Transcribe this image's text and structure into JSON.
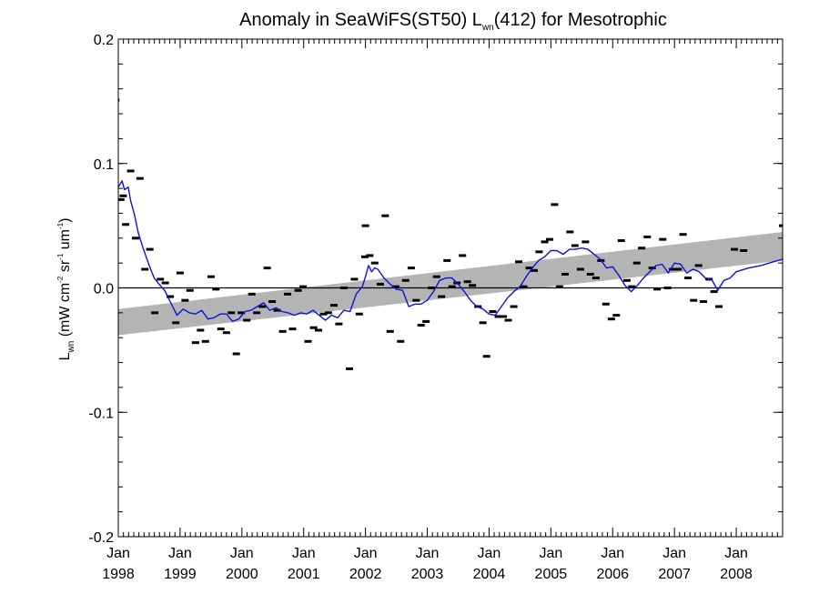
{
  "chart_data": {
    "type": "scatter",
    "title": {
      "main": "Anomaly in SeaWiFS(ST50) L",
      "sub": "wn",
      "rest": "(412) for Mesotrophic"
    },
    "ylabel": {
      "symbol": "L",
      "symbol_sub": "wn",
      "unit_prefix": " (mW cm",
      "exp1": "-2",
      "unit_mid1": " sr",
      "exp2": "-1",
      "unit_mid2": " um",
      "exp3": "-1",
      "unit_suffix": ")"
    },
    "x_range": [
      1998.0,
      2008.75
    ],
    "ylim": [
      -0.2,
      0.2
    ],
    "x_ticks": [
      {
        "x": 1998,
        "month": "Jan",
        "year": "1998"
      },
      {
        "x": 1999,
        "month": "Jan",
        "year": "1999"
      },
      {
        "x": 2000,
        "month": "Jan",
        "year": "2000"
      },
      {
        "x": 2001,
        "month": "Jan",
        "year": "2001"
      },
      {
        "x": 2002,
        "month": "Jan",
        "year": "2002"
      },
      {
        "x": 2003,
        "month": "Jan",
        "year": "2003"
      },
      {
        "x": 2004,
        "month": "Jan",
        "year": "2004"
      },
      {
        "x": 2005,
        "month": "Jan",
        "year": "2005"
      },
      {
        "x": 2006,
        "month": "Jan",
        "year": "2006"
      },
      {
        "x": 2007,
        "month": "Jan",
        "year": "2007"
      },
      {
        "x": 2008,
        "month": "Jan",
        "year": "2008"
      }
    ],
    "y_ticks": [
      {
        "y": 0.2,
        "label": "0.2"
      },
      {
        "y": 0.1,
        "label": "0.1"
      },
      {
        "y": 0.0,
        "label": "0.0"
      },
      {
        "y": -0.1,
        "label": "-0.1"
      },
      {
        "y": -0.2,
        "label": "-0.2"
      }
    ],
    "zero_line": 0.0,
    "trend_band": {
      "x": [
        1998.0,
        2008.75
      ],
      "upper": [
        -0.017,
        0.045
      ],
      "lower": [
        -0.038,
        0.022
      ]
    },
    "colors": {
      "smooth": "#1010dd",
      "band": "#b4b4b4",
      "points": "#000000",
      "axis": "#000000"
    },
    "monthly_anomalies": [
      [
        1997.96,
        0.151
      ],
      [
        1998.04,
        0.071
      ],
      [
        1998.08,
        0.074
      ],
      [
        1998.12,
        0.051
      ],
      [
        1998.2,
        0.094
      ],
      [
        1998.28,
        0.04
      ],
      [
        1998.35,
        0.088
      ],
      [
        1998.43,
        0.015
      ],
      [
        1998.51,
        0.031
      ],
      [
        1998.59,
        -0.02
      ],
      [
        1998.68,
        0.007
      ],
      [
        1998.76,
        0.004
      ],
      [
        1998.84,
        -0.007
      ],
      [
        1998.93,
        -0.028
      ],
      [
        1999.0,
        0.012
      ],
      [
        1999.08,
        -0.01
      ],
      [
        1999.16,
        -0.002
      ],
      [
        1999.25,
        -0.044
      ],
      [
        1999.33,
        -0.034
      ],
      [
        1999.41,
        -0.043
      ],
      [
        1999.5,
        0.009
      ],
      [
        1999.58,
        -0.001
      ],
      [
        1999.66,
        -0.033
      ],
      [
        1999.75,
        -0.036
      ],
      [
        1999.83,
        -0.02
      ],
      [
        1999.91,
        -0.053
      ],
      [
        1999.99,
        -0.02
      ],
      [
        2000.08,
        -0.026
      ],
      [
        2000.16,
        -0.005
      ],
      [
        2000.24,
        -0.02
      ],
      [
        2000.33,
        -0.015
      ],
      [
        2000.41,
        0.016
      ],
      [
        2000.49,
        -0.011
      ],
      [
        2000.57,
        -0.018
      ],
      [
        2000.66,
        -0.035
      ],
      [
        2000.74,
        -0.005
      ],
      [
        2000.82,
        -0.033
      ],
      [
        2000.91,
        -0.002
      ],
      [
        2000.99,
        0.001
      ],
      [
        2001.07,
        -0.043
      ],
      [
        2001.16,
        -0.032
      ],
      [
        2001.24,
        -0.034
      ],
      [
        2001.32,
        -0.021
      ],
      [
        2001.4,
        -0.02
      ],
      [
        2001.49,
        -0.014
      ],
      [
        2001.57,
        -0.029
      ],
      [
        2001.65,
        0.0
      ],
      [
        2001.74,
        -0.065
      ],
      [
        2001.82,
        0.007
      ],
      [
        2001.9,
        -0.021
      ],
      [
        2001.99,
        0.025
      ],
      [
        2002.0,
        0.05
      ],
      [
        2002.07,
        0.026
      ],
      [
        2002.15,
        0.02
      ],
      [
        2002.24,
        0.003
      ],
      [
        2002.32,
        0.058
      ],
      [
        2002.4,
        -0.035
      ],
      [
        2002.49,
        0.001
      ],
      [
        2002.57,
        -0.043
      ],
      [
        2002.65,
        0.006
      ],
      [
        2002.74,
        0.016
      ],
      [
        2002.82,
        -0.01
      ],
      [
        2002.9,
        -0.03
      ],
      [
        2002.98,
        -0.027
      ],
      [
        2003.07,
        0.0
      ],
      [
        2003.15,
        0.009
      ],
      [
        2003.23,
        -0.007
      ],
      [
        2003.32,
        0.022
      ],
      [
        2003.4,
        0.001
      ],
      [
        2003.48,
        0.004
      ],
      [
        2003.57,
        0.026
      ],
      [
        2003.65,
        0.005
      ],
      [
        2003.73,
        0.002
      ],
      [
        2003.82,
        -0.015
      ],
      [
        2003.9,
        -0.028
      ],
      [
        2003.96,
        -0.055
      ],
      [
        2004.06,
        -0.019
      ],
      [
        2004.15,
        -0.023
      ],
      [
        2004.23,
        -0.023
      ],
      [
        2004.31,
        -0.026
      ],
      [
        2004.4,
        -0.015
      ],
      [
        2004.48,
        0.021
      ],
      [
        2004.56,
        0.001
      ],
      [
        2004.65,
        0.016
      ],
      [
        2004.73,
        0.014
      ],
      [
        2004.81,
        0.029
      ],
      [
        2004.9,
        0.037
      ],
      [
        2004.98,
        0.039
      ],
      [
        2005.06,
        0.067
      ],
      [
        2005.14,
        0.001
      ],
      [
        2005.23,
        0.011
      ],
      [
        2005.31,
        0.045
      ],
      [
        2005.39,
        0.034
      ],
      [
        2005.48,
        0.015
      ],
      [
        2005.56,
        0.037
      ],
      [
        2005.64,
        0.011
      ],
      [
        2005.73,
        0.008
      ],
      [
        2005.81,
        0.022
      ],
      [
        2005.89,
        -0.013
      ],
      [
        2005.98,
        -0.025
      ],
      [
        2006.06,
        -0.022
      ],
      [
        2006.14,
        0.038
      ],
      [
        2006.23,
        0.006
      ],
      [
        2006.31,
        0.001
      ],
      [
        2006.39,
        0.02
      ],
      [
        2006.47,
        0.032
      ],
      [
        2006.56,
        0.041
      ],
      [
        2006.64,
        0.016
      ],
      [
        2006.72,
        -0.001
      ],
      [
        2006.81,
        0.039
      ],
      [
        2006.89,
        0.0
      ],
      [
        2006.97,
        0.015
      ],
      [
        2007.06,
        0.015
      ],
      [
        2007.14,
        0.043
      ],
      [
        2007.22,
        0.008
      ],
      [
        2007.31,
        -0.01
      ],
      [
        2007.39,
        0.018
      ],
      [
        2007.47,
        -0.011
      ],
      [
        2007.56,
        0.007
      ],
      [
        2007.64,
        -0.003
      ],
      [
        2007.72,
        -0.015
      ],
      [
        2007.97,
        0.031
      ],
      [
        2008.12,
        0.03
      ],
      [
        2008.75,
        0.05
      ]
    ],
    "smoothed_series": [
      [
        1998.0,
        0.081
      ],
      [
        1998.06,
        0.086
      ],
      [
        1998.1,
        0.079
      ],
      [
        1998.16,
        0.081
      ],
      [
        1998.2,
        0.07
      ],
      [
        1998.26,
        0.059
      ],
      [
        1998.32,
        0.045
      ],
      [
        1998.4,
        0.032
      ],
      [
        1998.5,
        0.018
      ],
      [
        1998.58,
        0.008
      ],
      [
        1998.66,
        0.003
      ],
      [
        1998.75,
        -0.002
      ],
      [
        1998.85,
        -0.012
      ],
      [
        1998.95,
        -0.022
      ],
      [
        1999.05,
        -0.017
      ],
      [
        1999.15,
        -0.02
      ],
      [
        1999.25,
        -0.021
      ],
      [
        1999.35,
        -0.018
      ],
      [
        1999.45,
        -0.025
      ],
      [
        1999.55,
        -0.024
      ],
      [
        1999.65,
        -0.021
      ],
      [
        1999.75,
        -0.021
      ],
      [
        1999.85,
        -0.027
      ],
      [
        1999.95,
        -0.025
      ],
      [
        2000.05,
        -0.019
      ],
      [
        2000.15,
        -0.018
      ],
      [
        2000.25,
        -0.015
      ],
      [
        2000.35,
        -0.012
      ],
      [
        2000.45,
        -0.018
      ],
      [
        2000.55,
        -0.016
      ],
      [
        2000.65,
        -0.019
      ],
      [
        2000.75,
        -0.02
      ],
      [
        2000.85,
        -0.022
      ],
      [
        2000.95,
        -0.02
      ],
      [
        2001.05,
        -0.021
      ],
      [
        2001.15,
        -0.018
      ],
      [
        2001.25,
        -0.022
      ],
      [
        2001.35,
        -0.026
      ],
      [
        2001.45,
        -0.022
      ],
      [
        2001.55,
        -0.024
      ],
      [
        2001.65,
        -0.018
      ],
      [
        2001.75,
        -0.019
      ],
      [
        2001.85,
        -0.005
      ],
      [
        2001.95,
        0.001
      ],
      [
        2002.0,
        0.009
      ],
      [
        2002.05,
        0.018
      ],
      [
        2002.1,
        0.013
      ],
      [
        2002.15,
        0.016
      ],
      [
        2002.2,
        0.015
      ],
      [
        2002.3,
        0.008
      ],
      [
        2002.4,
        0.003
      ],
      [
        2002.5,
        -0.001
      ],
      [
        2002.6,
        -0.002
      ],
      [
        2002.7,
        -0.015
      ],
      [
        2002.8,
        -0.013
      ],
      [
        2002.9,
        -0.013
      ],
      [
        2003.0,
        -0.01
      ],
      [
        2003.1,
        -0.003
      ],
      [
        2003.2,
        0.006
      ],
      [
        2003.3,
        0.008
      ],
      [
        2003.4,
        0.008
      ],
      [
        2003.5,
        0.003
      ],
      [
        2003.6,
        -0.003
      ],
      [
        2003.7,
        -0.01
      ],
      [
        2003.8,
        -0.015
      ],
      [
        2003.9,
        -0.017
      ],
      [
        2004.0,
        -0.021
      ],
      [
        2004.1,
        -0.022
      ],
      [
        2004.2,
        -0.015
      ],
      [
        2004.3,
        -0.008
      ],
      [
        2004.4,
        -0.003
      ],
      [
        2004.5,
        0.001
      ],
      [
        2004.6,
        0.009
      ],
      [
        2004.7,
        0.016
      ],
      [
        2004.8,
        0.022
      ],
      [
        2004.9,
        0.025
      ],
      [
        2005.0,
        0.03
      ],
      [
        2005.1,
        0.03
      ],
      [
        2005.2,
        0.027
      ],
      [
        2005.3,
        0.031
      ],
      [
        2005.4,
        0.031
      ],
      [
        2005.5,
        0.032
      ],
      [
        2005.6,
        0.031
      ],
      [
        2005.7,
        0.027
      ],
      [
        2005.8,
        0.023
      ],
      [
        2005.9,
        0.016
      ],
      [
        2006.0,
        0.017
      ],
      [
        2006.1,
        0.01
      ],
      [
        2006.2,
        0.002
      ],
      [
        2006.3,
        -0.003
      ],
      [
        2006.4,
        0.002
      ],
      [
        2006.5,
        0.008
      ],
      [
        2006.6,
        0.013
      ],
      [
        2006.7,
        0.018
      ],
      [
        2006.8,
        0.019
      ],
      [
        2006.9,
        0.012
      ],
      [
        2007.0,
        0.02
      ],
      [
        2007.1,
        0.019
      ],
      [
        2007.2,
        0.012
      ],
      [
        2007.3,
        0.015
      ],
      [
        2007.4,
        0.013
      ],
      [
        2007.5,
        0.008
      ],
      [
        2007.6,
        0.007
      ],
      [
        2007.7,
        -0.002
      ],
      [
        2007.8,
        0.006
      ],
      [
        2007.9,
        0.008
      ],
      [
        2008.0,
        0.013
      ],
      [
        2008.2,
        0.016
      ],
      [
        2008.4,
        0.018
      ],
      [
        2008.6,
        0.021
      ],
      [
        2008.75,
        0.023
      ]
    ]
  }
}
